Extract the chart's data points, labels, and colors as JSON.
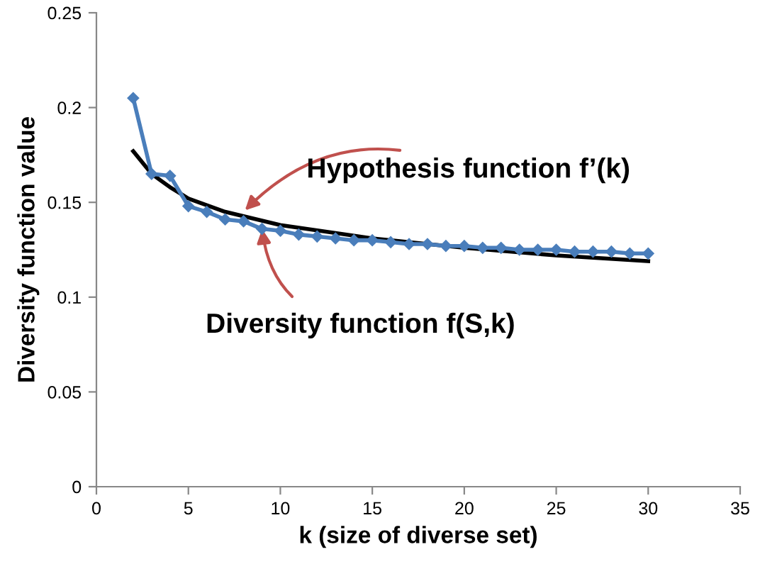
{
  "chart_data": {
    "type": "line",
    "xlabel": "k (size of diverse set)",
    "ylabel": "Diversity function value",
    "xlim": [
      0,
      35
    ],
    "xticks": [
      0,
      5,
      10,
      15,
      20,
      25,
      30,
      35
    ],
    "ylim": [
      0,
      0.25
    ],
    "yticks": [
      0,
      0.05,
      0.1,
      0.15,
      0.2,
      0.25
    ],
    "grid": false,
    "legend": false,
    "series": [
      {
        "color": "#4a7ebb",
        "marker": "diamond",
        "x": [
          2,
          3,
          4,
          5,
          6,
          7,
          8,
          9,
          10,
          11,
          12,
          13,
          14,
          15,
          16,
          17,
          18,
          19,
          20,
          21,
          22,
          23,
          24,
          25,
          26,
          27,
          28,
          29,
          30
        ],
        "values": [
          0.205,
          0.165,
          0.164,
          0.148,
          0.145,
          0.141,
          0.14,
          0.136,
          0.135,
          0.133,
          0.132,
          0.131,
          0.13,
          0.13,
          0.129,
          0.128,
          0.128,
          0.127,
          0.127,
          0.126,
          0.126,
          0.125,
          0.125,
          0.125,
          0.124,
          0.124,
          0.124,
          0.123,
          0.123
        ]
      },
      {
        "color": "#000000",
        "marker": "none",
        "x": [
          2,
          3,
          4,
          5,
          7,
          10,
          15,
          20,
          25,
          30
        ],
        "values": [
          0.177,
          0.165,
          0.158,
          0.152,
          0.145,
          0.138,
          0.131,
          0.126,
          0.122,
          0.119
        ]
      }
    ],
    "annotations": [
      {
        "text": "Hypothesis function f’(k)",
        "x": 8,
        "y": 0.145
      },
      {
        "text": "Diversity function f(S,k)",
        "x": 9,
        "y": 0.137
      }
    ]
  }
}
